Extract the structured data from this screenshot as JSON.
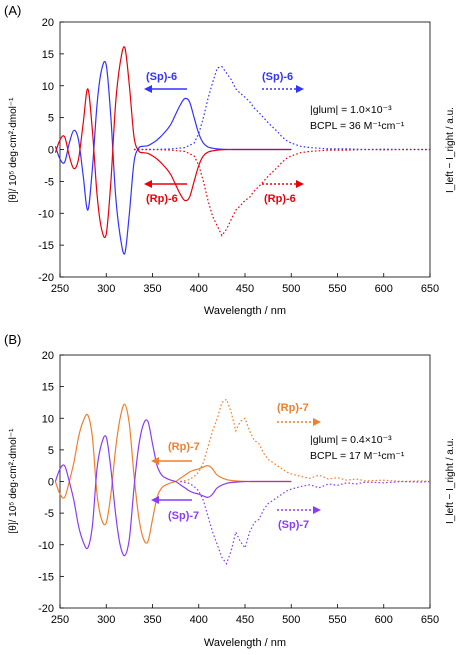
{
  "chart_data": [
    {
      "panel_label": "(A)",
      "type": "line",
      "xlabel": "Wavelength / nm",
      "ylabel_left": "[θ]/ 10⁵ deg·cm²·dmol⁻¹",
      "ylabel_right": "I_left − I_right / a.u.",
      "xlim": [
        250,
        650
      ],
      "ylim": [
        -20,
        20
      ],
      "xticks": [
        250,
        300,
        350,
        400,
        450,
        500,
        550,
        600,
        650
      ],
      "yticks": [
        -20,
        -15,
        -10,
        -5,
        0,
        5,
        10,
        15,
        20
      ],
      "grid": false,
      "series": [
        {
          "name": "(Sp)-6",
          "kind": "CD",
          "style": "solid",
          "color": "#3333ff",
          "x": [
            245,
            250,
            255,
            260,
            265,
            270,
            275,
            280,
            285,
            290,
            295,
            300,
            305,
            310,
            315,
            320,
            325,
            330,
            335,
            340,
            345,
            350,
            355,
            360,
            365,
            370,
            375,
            380,
            385,
            390,
            395,
            400,
            405,
            410,
            415,
            420,
            430,
            440,
            450,
            460,
            470,
            480,
            490,
            500
          ],
          "y": [
            0.5,
            -1.5,
            -2.0,
            1.0,
            3.0,
            1.5,
            -4.0,
            -9.5,
            -3.0,
            7.0,
            12.5,
            13.2,
            5.0,
            -7.0,
            -13.5,
            -16.3,
            -10.0,
            -2.0,
            0.2,
            0.5,
            0.6,
            1.0,
            1.5,
            2.2,
            3.0,
            4.0,
            5.5,
            7.0,
            8.0,
            7.5,
            5.0,
            2.5,
            1.0,
            0.4,
            0.2,
            0.1,
            0,
            0,
            0,
            0,
            0,
            0,
            0,
            0
          ]
        },
        {
          "name": "(Rp)-6",
          "kind": "CD",
          "style": "solid",
          "color": "#e8000b",
          "x": [
            245,
            250,
            255,
            260,
            265,
            270,
            275,
            280,
            285,
            290,
            295,
            300,
            305,
            310,
            315,
            320,
            325,
            330,
            335,
            340,
            345,
            350,
            355,
            360,
            365,
            370,
            375,
            380,
            385,
            390,
            395,
            400,
            405,
            410,
            415,
            420,
            430,
            440,
            450,
            460,
            470,
            480,
            490,
            500
          ],
          "y": [
            -0.5,
            1.5,
            2.0,
            -1.0,
            -3.0,
            -1.5,
            4.0,
            9.5,
            3.0,
            -7.0,
            -12.5,
            -13.2,
            -5.0,
            7.0,
            13.5,
            16.0,
            10.0,
            2.0,
            -0.2,
            -0.5,
            -0.6,
            -1.0,
            -1.5,
            -2.2,
            -3.0,
            -4.0,
            -5.5,
            -7.0,
            -8.0,
            -7.5,
            -5.0,
            -2.5,
            -1.0,
            -0.4,
            -0.2,
            -0.1,
            0,
            0,
            0,
            0,
            0,
            0,
            0,
            0
          ]
        },
        {
          "name": "(Sp)-6",
          "kind": "CPL",
          "style": "dotted",
          "color": "#3333ff",
          "x": [
            330,
            350,
            370,
            385,
            395,
            400,
            405,
            410,
            415,
            420,
            425,
            430,
            435,
            440,
            445,
            450,
            455,
            460,
            465,
            470,
            475,
            480,
            485,
            490,
            495,
            500,
            510,
            520,
            530,
            540,
            560,
            580,
            600,
            620,
            640,
            650
          ],
          "y": [
            0,
            0,
            0.1,
            0.3,
            1.0,
            2.5,
            5.0,
            8.0,
            10.5,
            12.8,
            13.0,
            12.0,
            11.0,
            9.5,
            8.8,
            8.2,
            7.5,
            6.5,
            5.8,
            5.0,
            4.2,
            3.5,
            2.8,
            2.0,
            1.4,
            1.0,
            0.5,
            0.3,
            0.2,
            0.1,
            0.1,
            0,
            0.05,
            0,
            0,
            0
          ]
        },
        {
          "name": "(Rp)-6",
          "kind": "CPL",
          "style": "dotted",
          "color": "#e8000b",
          "x": [
            330,
            350,
            370,
            385,
            395,
            400,
            405,
            410,
            415,
            420,
            425,
            430,
            435,
            440,
            445,
            450,
            455,
            460,
            465,
            470,
            475,
            480,
            485,
            490,
            495,
            500,
            510,
            520,
            530,
            540,
            560,
            580,
            600,
            620,
            640,
            650
          ],
          "y": [
            0,
            0,
            -0.1,
            -0.3,
            -1.0,
            -2.5,
            -5.0,
            -8.0,
            -10.5,
            -12.0,
            -13.5,
            -12.5,
            -11.0,
            -9.5,
            -8.8,
            -8.0,
            -7.5,
            -6.5,
            -5.8,
            -5.0,
            -4.2,
            -3.5,
            -2.8,
            -2.0,
            -1.4,
            -1.0,
            -0.5,
            -0.3,
            -0.2,
            -0.1,
            -0.1,
            0,
            -0.05,
            0,
            0,
            0
          ]
        }
      ],
      "annotations": {
        "label_sp_cd": "(Sp)-6",
        "label_sp_cpl": "(Sp)-6",
        "label_rp_cd": "(Rp)-6",
        "label_rp_cpl": "(Rp)-6",
        "glum_line": "|glum| = 1.0×10⁻³",
        "bcpl_line": "BCPL = 36 M⁻¹cm⁻¹"
      }
    },
    {
      "panel_label": "(B)",
      "type": "line",
      "xlabel": "Wavelength / nm",
      "ylabel_left": "[θ]/ 10⁵ deg·cm²·dmol⁻¹",
      "ylabel_right": "I_left − I_right / a.u.",
      "xlim": [
        250,
        650
      ],
      "ylim": [
        -20,
        20
      ],
      "xticks": [
        250,
        300,
        350,
        400,
        450,
        500,
        550,
        600,
        650
      ],
      "yticks": [
        -20,
        -15,
        -10,
        -5,
        0,
        5,
        10,
        15,
        20
      ],
      "grid": false,
      "series": [
        {
          "name": "(Rp)-7",
          "kind": "CD",
          "style": "solid",
          "color": "#f07f2d",
          "x": [
            245,
            250,
            255,
            260,
            265,
            270,
            275,
            280,
            285,
            290,
            295,
            300,
            305,
            310,
            315,
            320,
            325,
            330,
            335,
            340,
            345,
            350,
            355,
            360,
            365,
            370,
            375,
            380,
            385,
            390,
            395,
            400,
            405,
            410,
            415,
            420,
            430,
            440,
            450,
            460,
            470,
            480,
            490,
            500
          ],
          "y": [
            0,
            -2.0,
            -2.5,
            0,
            3.0,
            7.0,
            9.5,
            10.5,
            7.0,
            -2.0,
            -6.0,
            -6.5,
            -2.0,
            5.0,
            10.0,
            12.2,
            9.0,
            1.0,
            -5.5,
            -9.0,
            -9.5,
            -6.0,
            -2.5,
            -1.0,
            -0.5,
            -0.2,
            0,
            0.5,
            1.0,
            1.5,
            1.8,
            2.0,
            2.3,
            2.5,
            2.0,
            1.0,
            0.3,
            0.1,
            0,
            0,
            0,
            0,
            0,
            0
          ]
        },
        {
          "name": "(Sp)-7",
          "kind": "CD",
          "style": "solid",
          "color": "#8a3cf5",
          "x": [
            245,
            250,
            255,
            260,
            265,
            270,
            275,
            280,
            285,
            290,
            295,
            300,
            305,
            310,
            315,
            320,
            325,
            330,
            335,
            340,
            345,
            350,
            355,
            360,
            365,
            370,
            375,
            380,
            385,
            390,
            395,
            400,
            405,
            410,
            415,
            420,
            430,
            440,
            450,
            460,
            470,
            480,
            490,
            500
          ],
          "y": [
            0,
            2.0,
            2.5,
            0,
            -3.0,
            -7.0,
            -9.5,
            -10.5,
            -7.0,
            2.0,
            6.0,
            7.0,
            2.0,
            -5.0,
            -10.0,
            -11.7,
            -9.0,
            -1.0,
            5.5,
            9.0,
            9.5,
            6.0,
            2.5,
            1.0,
            0.5,
            0.2,
            0,
            -0.5,
            -1.0,
            -1.5,
            -1.8,
            -2.0,
            -2.3,
            -2.5,
            -2.0,
            -1.0,
            -0.3,
            -0.1,
            0,
            0,
            0,
            0,
            0,
            0
          ]
        },
        {
          "name": "(Rp)-7",
          "kind": "CPL",
          "style": "dotted",
          "color": "#f07f2d",
          "x": [
            380,
            390,
            395,
            400,
            405,
            410,
            415,
            420,
            425,
            430,
            435,
            440,
            445,
            450,
            455,
            460,
            465,
            470,
            475,
            480,
            485,
            490,
            495,
            500,
            510,
            520,
            530,
            540,
            550,
            560,
            570,
            580,
            600,
            620,
            640,
            650
          ],
          "y": [
            0,
            0.3,
            0.8,
            1.5,
            3.0,
            5.5,
            8.0,
            10.0,
            12.5,
            13.0,
            11.0,
            8.0,
            9.5,
            10.0,
            8.0,
            6.5,
            6.0,
            4.5,
            3.5,
            3.0,
            2.5,
            2.0,
            1.5,
            1.2,
            0.8,
            0.5,
            1.0,
            0.4,
            0.6,
            0.2,
            0.4,
            0.1,
            0.2,
            0,
            0.1,
            0
          ]
        },
        {
          "name": "(Sp)-7",
          "kind": "CPL",
          "style": "dotted",
          "color": "#8a3cf5",
          "x": [
            380,
            390,
            395,
            400,
            405,
            410,
            415,
            420,
            425,
            430,
            435,
            440,
            445,
            450,
            455,
            460,
            465,
            470,
            475,
            480,
            485,
            490,
            495,
            500,
            510,
            520,
            530,
            540,
            550,
            560,
            570,
            580,
            600,
            620,
            640,
            650
          ],
          "y": [
            0,
            -0.3,
            -0.8,
            -1.5,
            -3.0,
            -5.5,
            -8.0,
            -10.0,
            -12.0,
            -13.0,
            -11.0,
            -8.0,
            -9.5,
            -10.5,
            -8.0,
            -6.5,
            -6.0,
            -4.5,
            -3.5,
            -3.0,
            -2.5,
            -2.0,
            -1.5,
            -1.2,
            -0.8,
            -0.5,
            -1.0,
            -0.4,
            -0.6,
            -0.2,
            -0.4,
            -0.1,
            -0.2,
            0,
            -0.1,
            0
          ]
        }
      ],
      "annotations": {
        "label_rp_cd": "(Rp)-7",
        "label_rp_cpl": "(Rp)-7",
        "label_sp_cd": "(Sp)-7",
        "label_sp_cpl": "(Sp)-7",
        "glum_line": "|glum| = 0.4×10⁻³",
        "bcpl_line": "BCPL = 17 M⁻¹cm⁻¹"
      }
    }
  ]
}
